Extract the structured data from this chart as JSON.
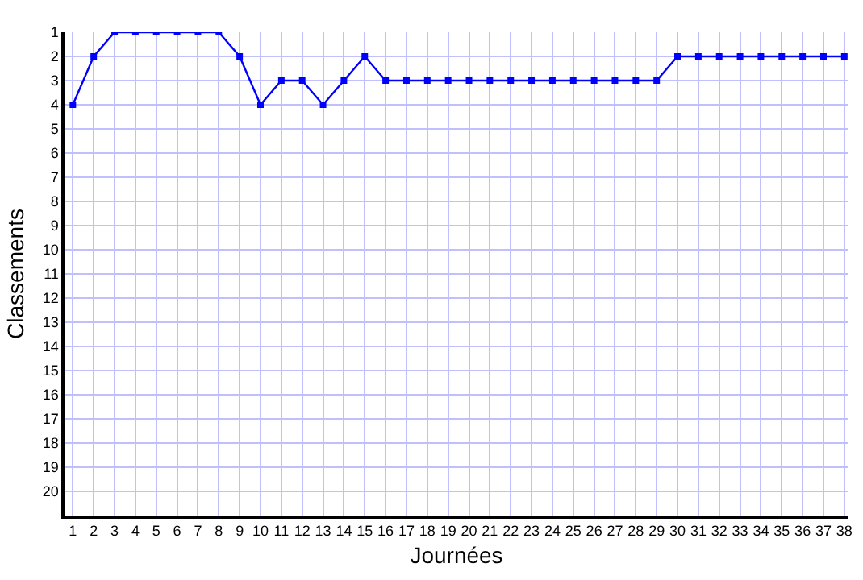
{
  "chart_data": {
    "type": "line",
    "xlabel": "Journées",
    "ylabel": "Classements",
    "x": [
      1,
      2,
      3,
      4,
      5,
      6,
      7,
      8,
      9,
      10,
      11,
      12,
      13,
      14,
      15,
      16,
      17,
      18,
      19,
      20,
      21,
      22,
      23,
      24,
      25,
      26,
      27,
      28,
      29,
      30,
      31,
      32,
      33,
      34,
      35,
      36,
      37,
      38
    ],
    "series": [
      {
        "color": "#0000ff",
        "values": [
          4,
          2,
          1,
          1,
          1,
          1,
          1,
          1,
          2,
          4,
          3,
          3,
          4,
          3,
          2,
          3,
          3,
          3,
          3,
          3,
          3,
          3,
          3,
          3,
          3,
          3,
          3,
          3,
          3,
          2,
          2,
          2,
          2,
          2,
          2,
          2,
          2,
          2
        ]
      }
    ],
    "xlim": [
      0.6,
      38.2
    ],
    "xticks": [
      1,
      2,
      3,
      4,
      5,
      6,
      7,
      8,
      9,
      10,
      11,
      12,
      13,
      14,
      15,
      16,
      17,
      18,
      19,
      20,
      21,
      22,
      23,
      24,
      25,
      26,
      27,
      28,
      29,
      30,
      31,
      32,
      33,
      34,
      35,
      36,
      37,
      38
    ],
    "ylim": [
      21,
      1
    ],
    "yticks": [
      1,
      2,
      3,
      4,
      5,
      6,
      7,
      8,
      9,
      10,
      11,
      12,
      13,
      14,
      15,
      16,
      17,
      18,
      19,
      20
    ],
    "grid": true,
    "marker": "square",
    "line_style": "solid"
  }
}
